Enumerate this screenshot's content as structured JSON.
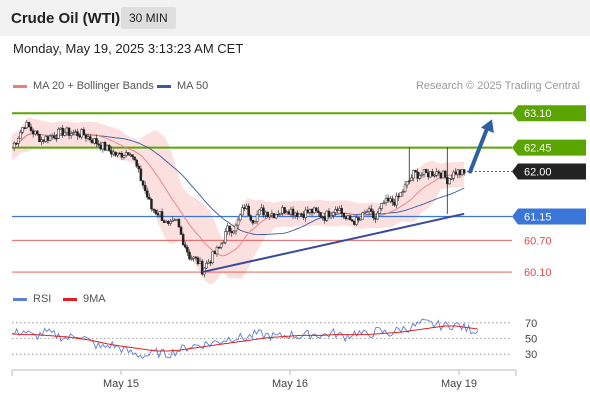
{
  "header": {
    "title": "Crude Oil (WTI)",
    "interval": "30 MIN",
    "datetime": "Monday, May 19, 2025 3:13:23 AM CET"
  },
  "legend": {
    "ma20": "MA 20 + Bollinger Bands",
    "ma50": "MA 50",
    "copyright": "Research © 2025 Trading Central",
    "rsi": "RSI",
    "rsi_ma": "9MA"
  },
  "colors": {
    "resistance": "#5aa500",
    "pivot": "#3a76d8",
    "support": "#e34a4a",
    "ma20": "#e88080",
    "ma50": "#3a5a9a",
    "bollinger_fill": "#fcd9d9",
    "arrow": "#2e5fa3",
    "trendline": "#3a4a9a",
    "rsi": "#5b7fd6",
    "rsi_ma": "#e02020"
  },
  "chart_data": [
    {
      "type": "candlestick",
      "title": "Crude Oil (WTI)",
      "interval": "30 MIN",
      "ylim": [
        59.95,
        63.35
      ],
      "x_labels": [
        "May 15",
        "May 16",
        "May 19"
      ],
      "levels": [
        {
          "value": 63.1,
          "label": "63.10",
          "kind": "resistance"
        },
        {
          "value": 62.45,
          "label": "62.45",
          "kind": "resistance"
        },
        {
          "value": 62.0,
          "label": "62.00",
          "kind": "last"
        },
        {
          "value": 61.15,
          "label": "61.15",
          "kind": "pivot"
        },
        {
          "value": 60.7,
          "label": "60.70",
          "kind": "support"
        },
        {
          "value": 60.1,
          "label": "60.10",
          "kind": "support"
        }
      ],
      "price_path": [
        [
          0,
          62.45
        ],
        [
          6,
          62.9
        ],
        [
          14,
          62.6
        ],
        [
          24,
          62.75
        ],
        [
          34,
          62.7
        ],
        [
          42,
          62.5
        ],
        [
          50,
          62.3
        ],
        [
          56,
          62.4
        ],
        [
          62,
          61.75
        ],
        [
          66,
          61.3
        ],
        [
          70,
          61.2
        ],
        [
          74,
          60.95
        ],
        [
          78,
          61.05
        ],
        [
          80,
          60.8
        ],
        [
          84,
          60.4
        ],
        [
          88,
          60.3
        ],
        [
          90,
          60.15
        ],
        [
          94,
          60.35
        ],
        [
          98,
          60.55
        ],
        [
          102,
          60.9
        ],
        [
          106,
          60.95
        ],
        [
          110,
          61.35
        ],
        [
          114,
          61.1
        ],
        [
          118,
          61.25
        ],
        [
          124,
          61.2
        ],
        [
          130,
          61.3
        ],
        [
          136,
          61.2
        ],
        [
          142,
          61.25
        ],
        [
          148,
          61.15
        ],
        [
          154,
          61.35
        ],
        [
          158,
          61.1
        ],
        [
          164,
          61.05
        ],
        [
          168,
          61.25
        ],
        [
          172,
          61.1
        ],
        [
          176,
          61.4
        ],
        [
          182,
          61.45
        ],
        [
          186,
          61.7
        ],
        [
          190,
          61.95
        ],
        [
          196,
          61.95
        ],
        [
          202,
          62.0
        ],
        [
          206,
          61.85
        ],
        [
          210,
          62.0
        ],
        [
          214,
          61.95
        ]
      ],
      "spikes": [
        {
          "index": 188,
          "high": 62.45
        },
        {
          "index": 206,
          "high": 62.45,
          "low": 61.2
        }
      ],
      "trendline": [
        [
          90,
          60.1
        ],
        [
          214,
          61.2
        ]
      ],
      "projection": [
        [
          214,
          62.0
        ],
        [
          230,
          63.1
        ]
      ]
    },
    {
      "type": "line",
      "title": "RSI",
      "ylim": [
        20,
        80
      ],
      "ticks": [
        70,
        50,
        30
      ],
      "x_labels": [
        "May 15",
        "May 16",
        "May 19"
      ],
      "series": [
        {
          "name": "RSI",
          "values": [
            55,
            60,
            52,
            58,
            54,
            50,
            56,
            46,
            38,
            42,
            36,
            30,
            28,
            32,
            30,
            35,
            40,
            42,
            44,
            48,
            52,
            50,
            56,
            54,
            52,
            55,
            53,
            56,
            54,
            57,
            52,
            58,
            54,
            60,
            56,
            62,
            64,
            70,
            68,
            66,
            68,
            62,
            60
          ]
        },
        {
          "name": "9MA",
          "values": [
            56,
            55,
            55,
            54,
            53,
            52,
            50,
            48,
            45,
            42,
            40,
            38,
            36,
            34,
            34,
            35,
            37,
            39,
            41,
            43,
            45,
            47,
            49,
            51,
            52,
            53,
            54,
            54,
            54,
            55,
            55,
            55,
            55,
            56,
            57,
            58,
            60,
            62,
            64,
            66,
            66,
            64,
            62
          ]
        }
      ]
    }
  ]
}
